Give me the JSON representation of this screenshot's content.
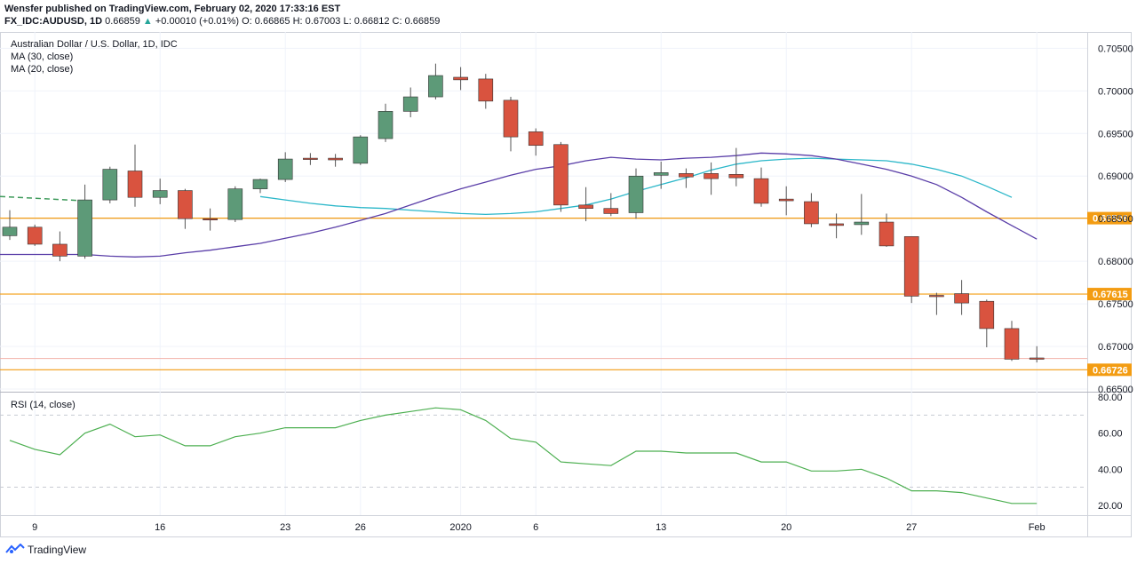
{
  "header": {
    "publisher_line": "Wensfer published on TradingView.com, February 02, 2020 17:33:16 EST",
    "symbol": "FX_IDC:AUDUSD, 1D",
    "last": "0.66859",
    "change_arrow": "▲",
    "change": "+0.00010 (+0.01%)",
    "ohlc": "O: 0.66865 H: 0.67003 L: 0.66812 C: 0.66859"
  },
  "legend": {
    "title": "Australian Dollar / U.S. Dollar, 1D, IDC",
    "ma30": "MA (30, close)",
    "ma20": "MA (20, close)",
    "rsi": "RSI (14, close)"
  },
  "footer": {
    "brand": "TradingView"
  },
  "colors": {
    "bull": "#5d9a78",
    "bear": "#d9533f",
    "ma30": "#2bb7c9",
    "ma20": "#5a3ea8",
    "level": "#f39c12",
    "rsi": "#4caf50"
  },
  "chart_data": {
    "type": "candlestick",
    "price_axis": {
      "ticks": [
        "0.70500",
        "0.70000",
        "0.69500",
        "0.69000",
        "0.68500",
        "0.68000",
        "0.67500",
        "0.67000",
        "0.66500"
      ],
      "ylim": [
        0.665,
        0.7065
      ]
    },
    "x_ticks": [
      "9",
      "16",
      "23",
      "26",
      "2020",
      "6",
      "13",
      "20",
      "27",
      "Feb"
    ],
    "levels": [
      {
        "label": "0.68506",
        "value": 0.68506
      },
      {
        "label": "0.67615",
        "value": 0.67615
      },
      {
        "label": "0.66726",
        "value": 0.66726
      }
    ],
    "current_price_line": 0.66859,
    "candles": [
      {
        "o": 0.683,
        "h": 0.686,
        "l": 0.6825,
        "c": 0.684
      },
      {
        "o": 0.684,
        "h": 0.6843,
        "l": 0.6818,
        "c": 0.682
      },
      {
        "o": 0.682,
        "h": 0.6835,
        "l": 0.68,
        "c": 0.6806
      },
      {
        "o": 0.6806,
        "h": 0.689,
        "l": 0.6803,
        "c": 0.6872
      },
      {
        "o": 0.6872,
        "h": 0.6911,
        "l": 0.6868,
        "c": 0.6908
      },
      {
        "o": 0.6906,
        "h": 0.6937,
        "l": 0.6864,
        "c": 0.6875
      },
      {
        "o": 0.6875,
        "h": 0.6897,
        "l": 0.6867,
        "c": 0.6883
      },
      {
        "o": 0.6883,
        "h": 0.6885,
        "l": 0.6838,
        "c": 0.685
      },
      {
        "o": 0.685,
        "h": 0.6862,
        "l": 0.6836,
        "c": 0.6849
      },
      {
        "o": 0.6849,
        "h": 0.6888,
        "l": 0.6846,
        "c": 0.6885
      },
      {
        "o": 0.6885,
        "h": 0.6897,
        "l": 0.688,
        "c": 0.6896
      },
      {
        "o": 0.6896,
        "h": 0.6928,
        "l": 0.6893,
        "c": 0.692
      },
      {
        "o": 0.6921,
        "h": 0.6927,
        "l": 0.6913,
        "c": 0.692
      },
      {
        "o": 0.6921,
        "h": 0.6926,
        "l": 0.6911,
        "c": 0.6919
      },
      {
        "o": 0.6915,
        "h": 0.6948,
        "l": 0.6913,
        "c": 0.6946
      },
      {
        "o": 0.6944,
        "h": 0.6985,
        "l": 0.694,
        "c": 0.6976
      },
      {
        "o": 0.6976,
        "h": 0.7004,
        "l": 0.6969,
        "c": 0.6993
      },
      {
        "o": 0.6993,
        "h": 0.7032,
        "l": 0.699,
        "c": 0.7018
      },
      {
        "o": 0.7016,
        "h": 0.7028,
        "l": 0.7001,
        "c": 0.7013
      },
      {
        "o": 0.7014,
        "h": 0.702,
        "l": 0.6979,
        "c": 0.6988
      },
      {
        "o": 0.6989,
        "h": 0.6993,
        "l": 0.6929,
        "c": 0.6946
      },
      {
        "o": 0.6952,
        "h": 0.6956,
        "l": 0.6924,
        "c": 0.6936
      },
      {
        "o": 0.6937,
        "h": 0.694,
        "l": 0.6858,
        "c": 0.6866
      },
      {
        "o": 0.6866,
        "h": 0.6887,
        "l": 0.6847,
        "c": 0.6862
      },
      {
        "o": 0.6862,
        "h": 0.688,
        "l": 0.6853,
        "c": 0.6856
      },
      {
        "o": 0.6857,
        "h": 0.6909,
        "l": 0.685,
        "c": 0.69
      },
      {
        "o": 0.6901,
        "h": 0.6917,
        "l": 0.6885,
        "c": 0.6904
      },
      {
        "o": 0.6903,
        "h": 0.6909,
        "l": 0.6886,
        "c": 0.6899
      },
      {
        "o": 0.6903,
        "h": 0.6916,
        "l": 0.6878,
        "c": 0.6897
      },
      {
        "o": 0.6902,
        "h": 0.6933,
        "l": 0.6888,
        "c": 0.6898
      },
      {
        "o": 0.6897,
        "h": 0.691,
        "l": 0.6864,
        "c": 0.6868
      },
      {
        "o": 0.6873,
        "h": 0.6888,
        "l": 0.6854,
        "c": 0.6871
      },
      {
        "o": 0.687,
        "h": 0.688,
        "l": 0.684,
        "c": 0.6844
      },
      {
        "o": 0.6844,
        "h": 0.6856,
        "l": 0.6827,
        "c": 0.6842
      },
      {
        "o": 0.6843,
        "h": 0.6879,
        "l": 0.6831,
        "c": 0.6846
      },
      {
        "o": 0.6846,
        "h": 0.6856,
        "l": 0.6817,
        "c": 0.6818
      },
      {
        "o": 0.6829,
        "h": 0.6829,
        "l": 0.6751,
        "c": 0.6759
      },
      {
        "o": 0.676,
        "h": 0.6763,
        "l": 0.6737,
        "c": 0.6759
      },
      {
        "o": 0.6762,
        "h": 0.6778,
        "l": 0.6737,
        "c": 0.6751
      },
      {
        "o": 0.6753,
        "h": 0.6755,
        "l": 0.6699,
        "c": 0.6721
      },
      {
        "o": 0.6721,
        "h": 0.673,
        "l": 0.6683,
        "c": 0.6685
      },
      {
        "o": 0.66865,
        "h": 0.67003,
        "l": 0.66812,
        "c": 0.66859
      }
    ],
    "ma30": [
      0.6876,
      0.6872,
      0.6868,
      0.6865,
      0.6863,
      0.6862,
      0.686,
      0.6858,
      0.6856,
      0.6855,
      0.6856,
      0.6858,
      0.6862,
      0.6866,
      0.6873,
      0.6882,
      0.689,
      0.6898,
      0.6907,
      0.6914,
      0.6918,
      0.692,
      0.6921,
      0.692,
      0.6919,
      0.6918,
      0.6914,
      0.6908,
      0.69,
      0.6888,
      0.6875
    ],
    "ma30_x_start": 10,
    "ma20": [
      0.6808,
      0.6806,
      0.6805,
      0.6806,
      0.681,
      0.6813,
      0.6817,
      0.6821,
      0.6827,
      0.6833,
      0.684,
      0.6848,
      0.6856,
      0.6866,
      0.6876,
      0.6885,
      0.6893,
      0.6901,
      0.6908,
      0.6912,
      0.6918,
      0.6922,
      0.692,
      0.6919,
      0.6921,
      0.6922,
      0.6924,
      0.6927,
      0.6926,
      0.6924,
      0.692,
      0.6914,
      0.6908,
      0.69,
      0.689,
      0.6875,
      0.6858,
      0.6842,
      0.6826
    ],
    "rsi": {
      "ticks": [
        "80.00",
        "60.00",
        "40.00",
        "20.00"
      ],
      "ylim": [
        15,
        82
      ],
      "values": [
        56,
        51,
        48,
        60,
        65,
        58,
        59,
        53,
        53,
        58,
        60,
        63,
        63,
        63,
        67,
        70,
        72,
        74,
        73,
        67,
        57,
        55,
        44,
        43,
        42,
        50,
        50,
        49,
        49,
        49,
        44,
        44,
        39,
        39,
        40,
        35,
        28,
        28,
        27,
        24,
        21,
        21
      ]
    }
  }
}
